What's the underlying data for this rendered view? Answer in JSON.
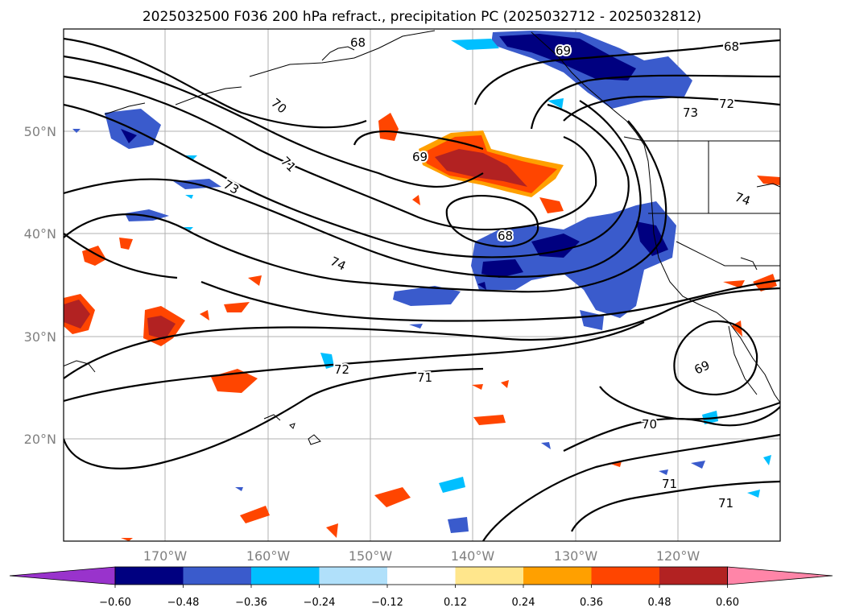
{
  "title": "2025032500 F036 200 hPa refract., precipitation PC (2025032712 - 2025032812)",
  "lat_labels": [
    "20°N",
    "30°N",
    "40°N",
    "50°N"
  ],
  "lon_labels": [
    "170°W",
    "160°W",
    "150°W",
    "140°W",
    "130°W",
    "120°W"
  ],
  "colorbar": {
    "tick_labels": [
      "−0.60",
      "−0.48",
      "−0.36",
      "−0.24",
      "−0.12",
      "0.12",
      "0.24",
      "0.36",
      "0.48",
      "0.60"
    ],
    "colors": [
      "#9933cc",
      "#000080",
      "#3a5bcc",
      "#00bfff",
      "#b0e0fa",
      "#ffffff",
      "#ffe68c",
      "#ffa000",
      "#ff4500",
      "#b22222",
      "#ff85a8"
    ]
  },
  "contour_labels": [
    "68",
    "68",
    "69",
    "70",
    "71",
    "73",
    "72",
    "73",
    "68",
    "74",
    "74",
    "69",
    "72",
    "71",
    "70",
    "71",
    "71"
  ]
}
